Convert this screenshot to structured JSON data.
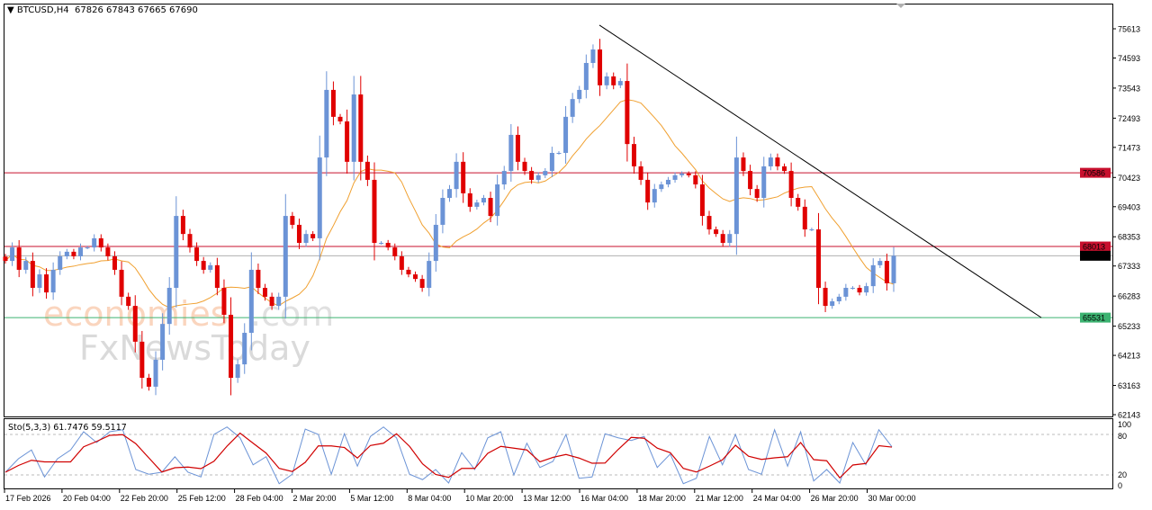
{
  "header": {
    "symbol": "BTCUSD,H4",
    "ohlc": "67826 67843 67665 67690"
  },
  "stochastic": {
    "label": "Sto(5,3,3)",
    "k_value": "61.7476",
    "d_value": "59.5117",
    "levels": [
      20,
      80
    ],
    "axis_ticks": [
      "100",
      "80",
      "20",
      "0"
    ]
  },
  "watermark": {
    "brand1": "economies",
    "brand1_suffix": ".com",
    "brand2": "FxNewsToday"
  },
  "colors": {
    "bull": "#6b93d6",
    "bear": "#e00000",
    "ma": "#f0a030",
    "resistance": "#c8102e",
    "support": "#3cb371",
    "bid": "#b0b0b0",
    "trendline": "#000000",
    "stoch_k": "#6b93d6",
    "stoch_d": "#d00000"
  },
  "chart_data": {
    "type": "candlestick",
    "symbol": "BTCUSD",
    "timeframe": "H4",
    "ylim": [
      62143,
      75900
    ],
    "y_ticks": [
      75613,
      74593,
      73543,
      72493,
      71473,
      70423,
      69403,
      68353,
      67333,
      66283,
      65233,
      64213,
      63163,
      62143
    ],
    "x_ticks": [
      "17 Feb 2026",
      "20 Feb 04:00",
      "22 Feb 20:00",
      "25 Feb 12:00",
      "28 Feb 04:00",
      "2 Mar 20:00",
      "5 Mar 12:00",
      "8 Mar 04:00",
      "10 Mar 20:00",
      "13 Mar 12:00",
      "16 Mar 04:00",
      "18 Mar 20:00",
      "21 Mar 12:00",
      "24 Mar 04:00",
      "26 Mar 20:00",
      "30 Mar 00:00"
    ],
    "closes": [
      67510,
      67980,
      67200,
      67510,
      66570,
      67040,
      66410,
      67200,
      67670,
      67830,
      67670,
      67980,
      67980,
      68300,
      67980,
      67670,
      67200,
      66260,
      65940,
      64690,
      63430,
      63120,
      64060,
      65310,
      66570,
      69080,
      68450,
      67980,
      67510,
      67200,
      67360,
      66570,
      65630,
      63430,
      63900,
      65000,
      67200,
      66570,
      66260,
      65940,
      66260,
      69080,
      68770,
      68140,
      68450,
      68300,
      71120,
      73480,
      72540,
      72380,
      70970,
      73320,
      70970,
      70340,
      68140,
      68140,
      67980,
      67670,
      67200,
      67040,
      66880,
      66570,
      67510,
      68770,
      69710,
      70020,
      70970,
      69870,
      69400,
      69550,
      69710,
      69080,
      70180,
      70650,
      71910,
      70970,
      70650,
      70340,
      70500,
      70650,
      71280,
      71280,
      72540,
      73160,
      73480,
      74420,
      74890,
      73640,
      73950,
      73640,
      73790,
      71590,
      70810,
      70340,
      69550,
      70020,
      70180,
      70340,
      70500,
      70560,
      70500,
      70180,
      69080,
      68610,
      68450,
      68140,
      68450,
      71120,
      70650,
      70020,
      69710,
      70810,
      71120,
      70810,
      70650,
      69710,
      69400,
      68610,
      68610,
      66570,
      65940,
      66100,
      66260,
      66570,
      66570,
      66410,
      66630,
      67360,
      67510,
      66730,
      67690
    ],
    "last_price": 67690,
    "horizontal_levels": [
      {
        "price": 70586,
        "label": "70586",
        "kind": "resistance"
      },
      {
        "price": 68013,
        "label": "68013",
        "kind": "resistance"
      },
      {
        "price": 67690,
        "label": "67690",
        "kind": "bid"
      },
      {
        "price": 65531,
        "label": "65531",
        "kind": "support"
      }
    ],
    "trendline": {
      "start_price": 75740,
      "end_price": 65530
    },
    "stochastic_k": [
      24,
      44,
      57,
      17,
      44,
      57,
      84,
      68,
      84,
      87,
      28,
      21,
      24,
      47,
      24,
      17,
      80,
      91,
      75,
      35,
      47,
      7,
      21,
      88,
      80,
      21,
      81,
      33,
      77,
      91,
      75,
      21,
      13,
      28,
      8,
      53,
      28,
      75,
      84,
      20,
      67,
      31,
      40,
      80,
      15,
      17,
      81,
      75,
      71,
      77,
      31,
      51,
      7,
      15,
      77,
      35,
      80,
      28,
      21,
      87,
      33,
      84,
      11,
      28,
      8,
      68,
      35,
      87,
      61.7476
    ],
    "stochastic_range": [
      0,
      100
    ]
  }
}
